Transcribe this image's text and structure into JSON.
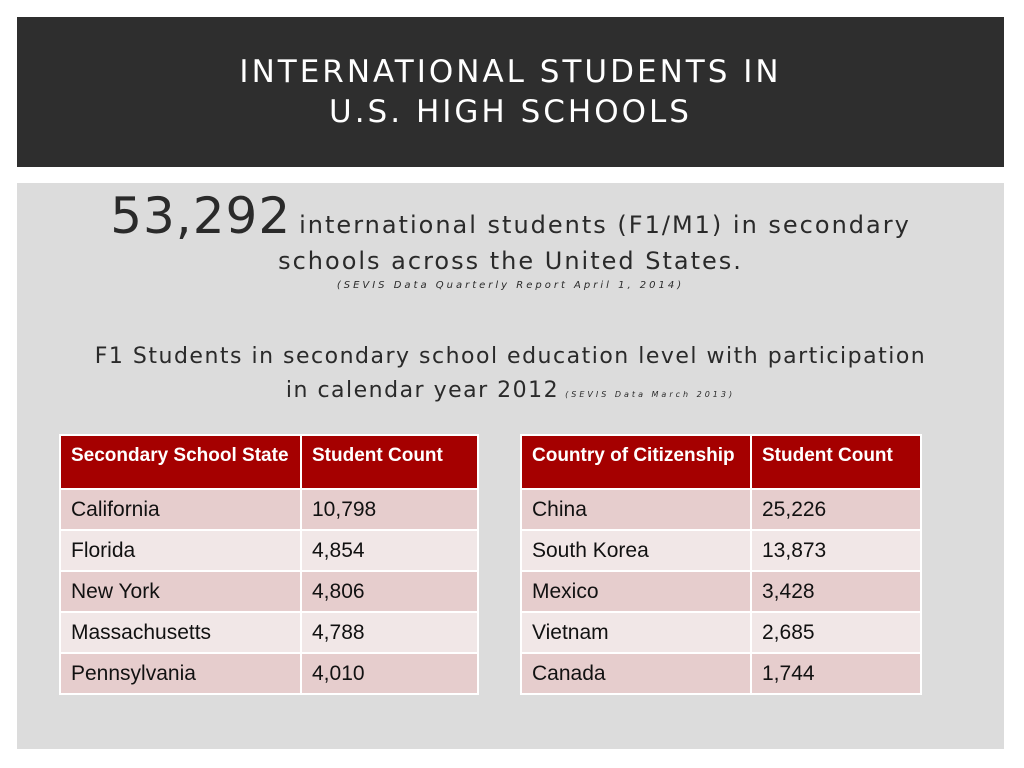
{
  "header": {
    "title_line1": "INTERNATIONAL STUDENTS IN",
    "title_line2": "U.S. HIGH SCHOOLS"
  },
  "summary": {
    "count": "53,292",
    "text_line1": "international students (F1/M1) in secondary",
    "text_line2": "schools across the United States.",
    "source": "(SEVIS Data Quarterly Report April 1, 2014)"
  },
  "subtitle": {
    "line1": "F1 Students in secondary school education level with participation",
    "line2": "in calendar year 2012",
    "source": "(SEVIS Data March 2013)"
  },
  "state_table": {
    "headers": [
      "Secondary School State",
      "Student Count"
    ],
    "rows": [
      [
        "California",
        "10,798"
      ],
      [
        "Florida",
        "4,854"
      ],
      [
        "New York",
        "4,806"
      ],
      [
        "Massachusetts",
        "4,788"
      ],
      [
        "Pennsylvania",
        "4,010"
      ]
    ]
  },
  "country_table": {
    "headers": [
      "Country of Citizenship",
      "Student Count"
    ],
    "rows": [
      [
        "China",
        "25,226"
      ],
      [
        "South Korea",
        "13,873"
      ],
      [
        "Mexico",
        "3,428"
      ],
      [
        "Vietnam",
        "2,685"
      ],
      [
        "Canada",
        "1,744"
      ]
    ]
  },
  "colors": {
    "title_bar": "#2e2e2e",
    "content_bg": "#dcdcdc",
    "table_header": "#a50000",
    "row_odd": "#e6cdcd",
    "row_even": "#f1e7e7"
  }
}
